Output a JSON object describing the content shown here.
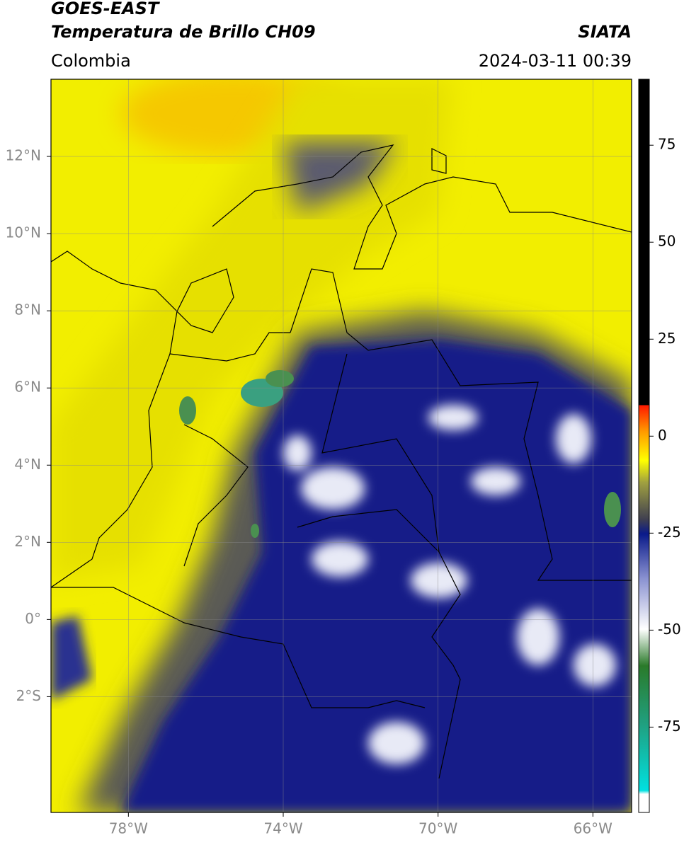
{
  "header": {
    "title": "GOES-EAST",
    "subtitle": "Temperatura de Brillo CH09",
    "source": "SIATA",
    "region": "Colombia",
    "timestamp": "2024-03-11 00:39"
  },
  "map": {
    "lonlim": [
      -80,
      -65
    ],
    "latlim": [
      -5,
      14
    ],
    "lon_ticks": [
      {
        "value": -78,
        "label": "78°W"
      },
      {
        "value": -74,
        "label": "74°W"
      },
      {
        "value": -70,
        "label": "70°W"
      },
      {
        "value": -66,
        "label": "66°W"
      }
    ],
    "lat_ticks": [
      {
        "value": 12,
        "label": "12°N"
      },
      {
        "value": 10,
        "label": "10°N"
      },
      {
        "value": 8,
        "label": "8°N"
      },
      {
        "value": 6,
        "label": "6°N"
      },
      {
        "value": 4,
        "label": "4°N"
      },
      {
        "value": 2,
        "label": "2°N"
      },
      {
        "value": 0,
        "label": "0°"
      },
      {
        "value": -2,
        "label": "2°S"
      }
    ]
  },
  "colorbar": {
    "lim": [
      -97,
      92
    ],
    "ticks": [
      75,
      50,
      25,
      0,
      -25,
      -50,
      -75
    ]
  }
}
